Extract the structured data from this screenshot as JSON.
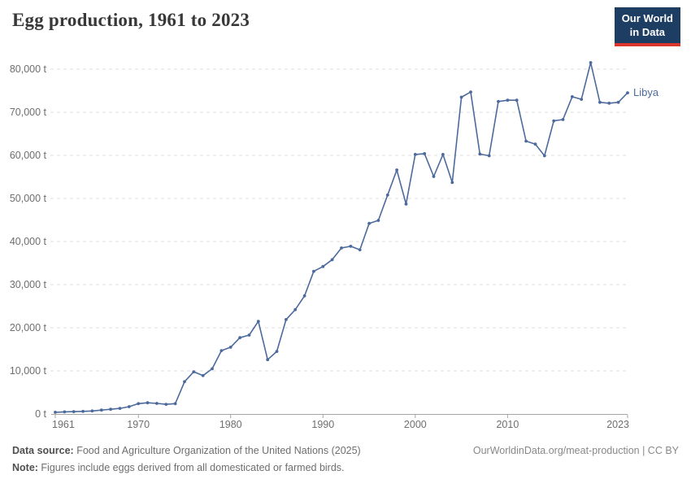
{
  "header": {
    "title": "Egg production, 1961 to 2023",
    "logo": {
      "line1": "Our World",
      "line2": "in Data",
      "bg_color": "#1d3d63",
      "accent_color": "#dc352c"
    }
  },
  "chart_data": {
    "type": "line",
    "title": "Egg production, 1961 to 2023",
    "unit": "t",
    "grid": "horizontal-dashed",
    "legend": "end-of-line-label",
    "xlabel": "",
    "ylabel": "",
    "ylim": [
      0,
      80000
    ],
    "yticks": [
      0,
      10000,
      20000,
      30000,
      40000,
      50000,
      60000,
      70000,
      80000
    ],
    "ytick_labels": [
      "0 t",
      "10,000 t",
      "20,000 t",
      "30,000 t",
      "40,000 t",
      "50,000 t",
      "60,000 t",
      "70,000 t",
      "80,000 t"
    ],
    "xticks": [
      1961,
      1970,
      1980,
      1990,
      2000,
      2010,
      2023
    ],
    "xtick_labels": [
      "1961",
      "1970",
      "1980",
      "1990",
      "2000",
      "2010",
      "2023"
    ],
    "series": [
      {
        "name": "Libya",
        "color": "#4C6A9C",
        "x": [
          1961,
          1962,
          1963,
          1964,
          1965,
          1966,
          1967,
          1968,
          1969,
          1970,
          1971,
          1972,
          1973,
          1974,
          1975,
          1976,
          1977,
          1978,
          1979,
          1980,
          1981,
          1982,
          1983,
          1984,
          1985,
          1986,
          1987,
          1988,
          1989,
          1990,
          1991,
          1992,
          1993,
          1994,
          1995,
          1996,
          1997,
          1998,
          1999,
          2000,
          2001,
          2002,
          2003,
          2004,
          2005,
          2006,
          2007,
          2008,
          2009,
          2010,
          2011,
          2012,
          2013,
          2014,
          2015,
          2016,
          2017,
          2018,
          2019,
          2020,
          2021,
          2022,
          2023
        ],
        "values": [
          400,
          500,
          550,
          600,
          700,
          900,
          1100,
          1300,
          1700,
          2400,
          2600,
          2450,
          2250,
          2400,
          7500,
          9800,
          8900,
          10500,
          14700,
          15500,
          17700,
          18300,
          21500,
          12600,
          14500,
          21900,
          24200,
          27400,
          33100,
          34200,
          35800,
          38500,
          38900,
          38100,
          44200,
          44900,
          50800,
          56600,
          48700,
          60200,
          60400,
          55100,
          60200,
          53700,
          73500,
          74700,
          60300,
          59900,
          72500,
          72800,
          72800,
          63300,
          62600,
          59900,
          68000,
          68300,
          73600,
          73000,
          81500,
          72300,
          72100,
          72300,
          74500
        ]
      }
    ]
  },
  "footer": {
    "source_label": "Data source:",
    "source_text": " Food and Agriculture Organization of the United Nations (2025)",
    "note_label": "Note:",
    "note_text": " Figures include eggs derived from all domesticated or farmed birds.",
    "link": "OurWorldinData.org/meat-production | CC BY"
  }
}
